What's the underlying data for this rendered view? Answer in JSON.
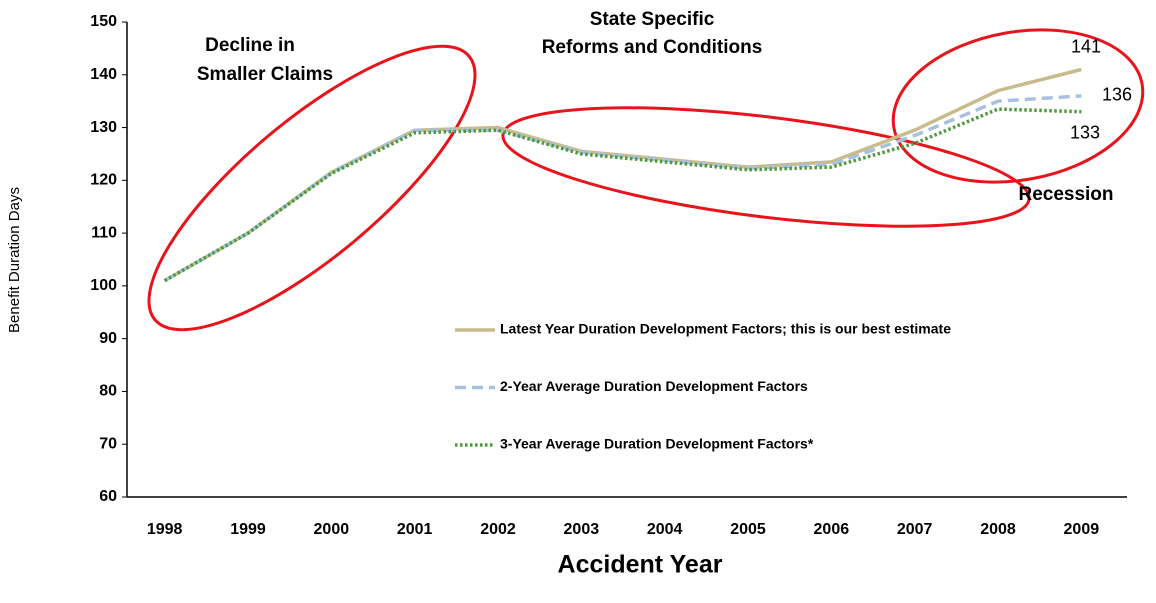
{
  "chart_data": {
    "type": "line",
    "x_label": "Accident Year",
    "y_label": "Benefit Duration Days",
    "categories": [
      "1998",
      "1999",
      "2000",
      "2001",
      "2002",
      "2003",
      "2004",
      "2005",
      "2006",
      "2007",
      "2008",
      "2009"
    ],
    "ylim": [
      60,
      150
    ],
    "yticks": [
      60,
      70,
      80,
      90,
      100,
      110,
      120,
      130,
      140,
      150
    ],
    "grid": false,
    "series": [
      {
        "name": "Latest Year Duration Development Factors; this is our best estimate",
        "color": "#c8bc8c",
        "dash": "solid",
        "values": [
          101,
          110,
          121.5,
          129.5,
          130,
          125.5,
          124,
          122.5,
          123.5,
          129.5,
          137,
          141
        ]
      },
      {
        "name": "2-Year Average Duration Development Factors",
        "color": "#a9c1e0",
        "dash": "dashed",
        "values": [
          101,
          110,
          121.5,
          129.5,
          129.5,
          125.3,
          123.8,
          122.3,
          123,
          128.5,
          135,
          136
        ]
      },
      {
        "name": "3-Year Average Duration Development Factors*",
        "color": "#4e9a3a",
        "dash": "dotted",
        "values": [
          101,
          110,
          121.3,
          129,
          129.5,
          125,
          123.5,
          122,
          122.5,
          127,
          133.5,
          133
        ]
      }
    ],
    "annotations": [
      {
        "lines": [
          "Decline in",
          "Smaller Claims"
        ]
      },
      {
        "lines": [
          "State Specific",
          "Reforms and Conditions"
        ]
      },
      {
        "lines": [
          "Recession"
        ]
      }
    ]
  }
}
